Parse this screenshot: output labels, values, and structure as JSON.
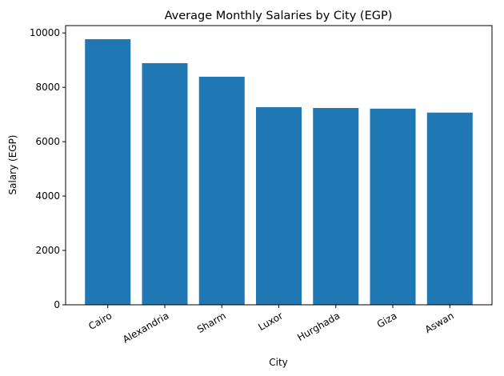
{
  "chart_data": {
    "type": "bar",
    "title": "Average Monthly Salaries by City (EGP)",
    "xlabel": "City",
    "ylabel": "Salary (EGP)",
    "categories": [
      "Cairo",
      "Alexandria",
      "Sharm",
      "Luxor",
      "Hurghada",
      "Giza",
      "Aswan"
    ],
    "values": [
      9770,
      8890,
      8390,
      7270,
      7240,
      7215,
      7070
    ],
    "ylim": [
      0,
      10270
    ],
    "yticks": [
      0,
      2000,
      4000,
      6000,
      8000,
      10000
    ],
    "xtick_rotation": 30,
    "grid": false,
    "legend": "none",
    "bar_color": "#1f77b4"
  }
}
